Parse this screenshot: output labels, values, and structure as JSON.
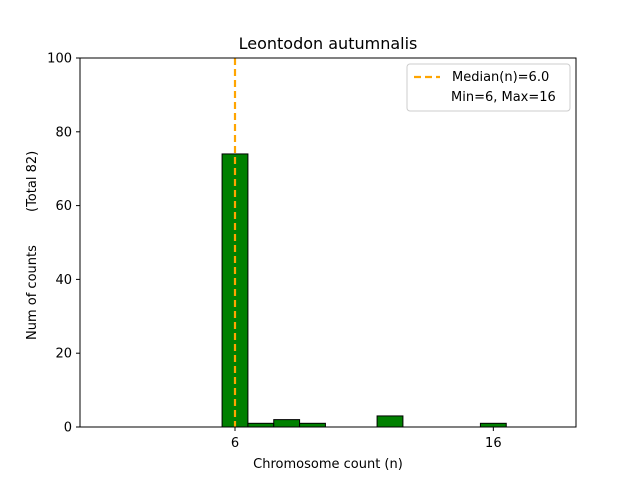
{
  "chart_data": {
    "type": "bar",
    "title": "Leontodon autumnalis",
    "xlabel": "Chromosome count (n)",
    "ylabel": "Num of counts",
    "ylabel2": "(Total 82)",
    "xlim": [
      0,
      19.2
    ],
    "ylim": [
      0,
      100
    ],
    "xticks": [
      6,
      16
    ],
    "yticks": [
      0,
      20,
      40,
      60,
      80,
      100
    ],
    "bin_width": 1,
    "bars": [
      {
        "x": 6,
        "value": 74
      },
      {
        "x": 7,
        "value": 1
      },
      {
        "x": 8,
        "value": 2
      },
      {
        "x": 9,
        "value": 1
      },
      {
        "x": 12,
        "value": 3
      },
      {
        "x": 16,
        "value": 1
      }
    ],
    "bar_color": "#008000",
    "bar_edge_color": "#000000",
    "median": 6.0,
    "median_color": "#ffa500",
    "legend": {
      "position": "top-right",
      "entries": [
        "Median(n)=6.0",
        "Min=6, Max=16"
      ]
    },
    "grid": false
  }
}
